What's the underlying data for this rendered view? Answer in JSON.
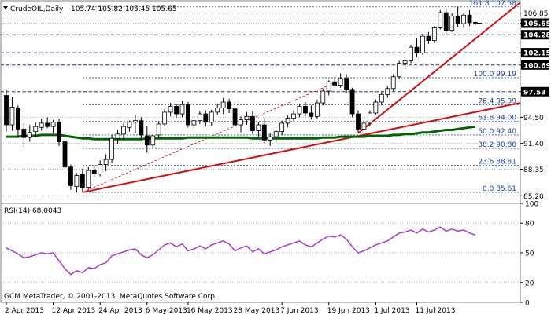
{
  "window": {
    "symbol_title": "CrudeOIL,Daily",
    "ohlc": "105.74 105.82 105.45 105.65",
    "copyright": "GCM MetaTrader, © 2001-2013, MetaQuotes Software Corp."
  },
  "price_axis": {
    "labels": [
      "106.85",
      "105.65",
      "104.28",
      "102.15",
      "100.69",
      "97.53",
      "94.50",
      "91.40",
      "88.35",
      "85.20"
    ],
    "highlighted": [
      "105.65",
      "104.28",
      "102.15",
      "100.69",
      "97.53"
    ]
  },
  "fib_levels": [
    {
      "label": "161.8 107.58",
      "value": 107.58
    },
    {
      "label": "100.0 99.19",
      "value": 99.19
    },
    {
      "label": "76.4 95.99",
      "value": 95.99
    },
    {
      "label": "61.8 94.00",
      "value": 94.0
    },
    {
      "label": "50.0 92.40",
      "value": 92.4
    },
    {
      "label": "38.2 90.80",
      "value": 90.8
    },
    {
      "label": "23.6 88.81",
      "value": 88.81
    },
    {
      "label": "0.0 85.61",
      "value": 85.61
    }
  ],
  "hlines": [
    104.28,
    102.15,
    100.69,
    97.53
  ],
  "rsi": {
    "title": "RSI(14) 68.0043",
    "axis_labels": [
      "100",
      "80",
      "50",
      "20",
      "0"
    ],
    "levels": [
      80,
      50,
      20
    ]
  },
  "time_axis": {
    "labels": [
      "2 Apr 2013",
      "12 Apr 2013",
      "24 Apr 2013",
      "6 May 2013",
      "16 May 2013",
      "28 May 2013",
      "7 Jun 2013",
      "19 Jun 2013",
      "1 Jul 2013",
      "11 Jul 2013"
    ]
  },
  "colors": {
    "up_candle": "#ffffff",
    "down_candle": "#000000",
    "ma": "#006400",
    "trendline": "#e00000",
    "rsi": "#b044c8",
    "highlight_box": "#000000"
  },
  "chart_data": {
    "type": "candlestick",
    "ohlc": [
      [
        97.1,
        97.8,
        92.8,
        93.6
      ],
      [
        93.6,
        96.9,
        92.9,
        95.7
      ],
      [
        95.6,
        95.9,
        92.2,
        93.1
      ],
      [
        93.1,
        93.8,
        91.0,
        92.1
      ],
      [
        92.1,
        93.6,
        91.6,
        92.7
      ],
      [
        92.8,
        93.9,
        92.2,
        93.4
      ],
      [
        93.3,
        94.3,
        92.9,
        93.8
      ],
      [
        93.8,
        94.5,
        93.2,
        93.4
      ],
      [
        93.4,
        94.2,
        92.6,
        93.9
      ],
      [
        93.9,
        94.3,
        91.1,
        91.6
      ],
      [
        91.6,
        91.8,
        88.2,
        88.6
      ],
      [
        88.6,
        88.9,
        85.9,
        86.4
      ],
      [
        86.3,
        87.9,
        85.6,
        87.6
      ],
      [
        87.8,
        88.4,
        85.6,
        86.1
      ],
      [
        86.2,
        88.6,
        85.9,
        88.2
      ],
      [
        88.2,
        88.7,
        87.4,
        87.8
      ],
      [
        87.8,
        89.4,
        87.5,
        88.9
      ],
      [
        88.9,
        90.1,
        88.1,
        89.5
      ],
      [
        89.5,
        92.4,
        89.1,
        92.0
      ],
      [
        92.0,
        93.0,
        91.3,
        92.5
      ],
      [
        92.5,
        93.8,
        91.9,
        93.4
      ],
      [
        93.3,
        94.1,
        92.8,
        93.9
      ],
      [
        93.9,
        94.8,
        92.6,
        94.1
      ],
      [
        94.1,
        94.5,
        91.8,
        92.4
      ],
      [
        92.3,
        93.5,
        90.3,
        91.2
      ],
      [
        91.2,
        92.4,
        90.9,
        92.3
      ],
      [
        92.4,
        94.0,
        92.0,
        93.7
      ],
      [
        93.7,
        95.5,
        93.4,
        95.1
      ],
      [
        95.1,
        96.2,
        94.6,
        95.8
      ],
      [
        95.8,
        96.1,
        94.4,
        94.9
      ],
      [
        94.9,
        96.5,
        94.5,
        96.0
      ],
      [
        96.0,
        96.3,
        93.3,
        93.6
      ],
      [
        93.6,
        94.4,
        92.9,
        94.1
      ],
      [
        94.1,
        95.2,
        93.7,
        94.9
      ],
      [
        94.9,
        95.3,
        93.4,
        93.9
      ],
      [
        93.9,
        95.4,
        93.5,
        95.1
      ],
      [
        95.1,
        96.1,
        94.8,
        95.6
      ],
      [
        95.6,
        96.8,
        94.9,
        96.3
      ],
      [
        96.3,
        96.7,
        95.0,
        95.5
      ],
      [
        95.5,
        95.8,
        93.2,
        93.6
      ],
      [
        93.6,
        94.6,
        92.7,
        94.2
      ],
      [
        94.2,
        95.1,
        93.6,
        94.6
      ],
      [
        94.6,
        95.2,
        92.5,
        92.9
      ],
      [
        92.9,
        93.9,
        92.2,
        93.6
      ],
      [
        93.6,
        94.4,
        91.3,
        91.8
      ],
      [
        91.8,
        92.6,
        91.1,
        92.2
      ],
      [
        92.2,
        93.1,
        91.5,
        92.8
      ],
      [
        92.8,
        94.1,
        92.4,
        93.8
      ],
      [
        93.8,
        94.7,
        93.3,
        94.4
      ],
      [
        94.4,
        95.3,
        94.0,
        94.9
      ],
      [
        94.9,
        96.1,
        94.5,
        95.8
      ],
      [
        95.8,
        96.3,
        94.6,
        95.0
      ],
      [
        95.0,
        95.9,
        94.2,
        94.6
      ],
      [
        94.6,
        96.6,
        94.3,
        96.2
      ],
      [
        96.2,
        97.9,
        95.9,
        97.6
      ],
      [
        97.6,
        98.9,
        97.1,
        98.7
      ],
      [
        98.7,
        99.3,
        98.1,
        98.3
      ],
      [
        98.3,
        99.7,
        98.0,
        99.1
      ],
      [
        99.1,
        99.6,
        97.4,
        97.8
      ],
      [
        97.8,
        98.0,
        94.5,
        94.9
      ],
      [
        94.9,
        95.3,
        92.7,
        93.1
      ],
      [
        93.1,
        94.2,
        92.5,
        93.8
      ],
      [
        93.8,
        95.3,
        93.4,
        95.0
      ],
      [
        95.0,
        96.6,
        94.8,
        96.3
      ],
      [
        96.3,
        97.5,
        95.9,
        97.2
      ],
      [
        97.2,
        98.2,
        96.8,
        97.9
      ],
      [
        97.9,
        99.6,
        97.6,
        99.3
      ],
      [
        99.3,
        101.2,
        99.0,
        100.9
      ],
      [
        100.9,
        101.6,
        100.2,
        101.2
      ],
      [
        101.2,
        103.1,
        100.9,
        102.8
      ],
      [
        102.8,
        103.9,
        101.6,
        102.1
      ],
      [
        102.1,
        104.4,
        101.9,
        104.1
      ],
      [
        104.1,
        104.6,
        103.2,
        103.6
      ],
      [
        103.6,
        105.3,
        103.3,
        105.1
      ],
      [
        105.1,
        107.2,
        104.9,
        106.9
      ],
      [
        106.9,
        107.4,
        104.4,
        104.8
      ],
      [
        104.8,
        106.8,
        104.6,
        106.5
      ],
      [
        106.5,
        107.6,
        105.2,
        105.6
      ],
      [
        105.6,
        106.9,
        105.1,
        106.6
      ],
      [
        106.6,
        107.2,
        105.3,
        105.7
      ],
      [
        105.74,
        105.82,
        105.45,
        105.65
      ]
    ],
    "ma": [
      92.2,
      92.2,
      92.2,
      92.3,
      92.3,
      92.3,
      92.4,
      92.4,
      92.4,
      92.4,
      92.3,
      92.2,
      92.1,
      92.0,
      92.0,
      91.9,
      91.9,
      91.9,
      91.9,
      91.9,
      91.9,
      91.9,
      91.9,
      91.9,
      92.0,
      92.0,
      92.0,
      92.0,
      92.0,
      92.0,
      92.0,
      92.1,
      92.1,
      92.1,
      92.1,
      92.1,
      92.1,
      92.1,
      92.1,
      92.1,
      92.1,
      92.1,
      92.0,
      92.0,
      92.0,
      92.0,
      92.0,
      92.0,
      92.0,
      92.0,
      92.0,
      92.0,
      92.0,
      92.0,
      92.1,
      92.1,
      92.1,
      92.2,
      92.2,
      92.2,
      92.2,
      92.2,
      92.3,
      92.3,
      92.3,
      92.3,
      92.4,
      92.4,
      92.5,
      92.5,
      92.6,
      92.7,
      92.7,
      92.8,
      92.9,
      93.0,
      93.0,
      93.1,
      93.2,
      93.3,
      93.4
    ],
    "rsi_values": [
      55,
      52,
      49,
      45,
      46,
      48,
      50,
      49,
      50,
      42,
      34,
      28,
      32,
      30,
      35,
      34,
      38,
      40,
      47,
      49,
      51,
      53,
      54,
      48,
      45,
      48,
      53,
      58,
      60,
      56,
      59,
      52,
      54,
      57,
      54,
      58,
      60,
      62,
      59,
      52,
      55,
      57,
      51,
      54,
      49,
      51,
      53,
      56,
      58,
      60,
      62,
      58,
      56,
      60,
      64,
      67,
      66,
      68,
      64,
      56,
      50,
      52,
      55,
      58,
      60,
      62,
      66,
      70,
      71,
      73,
      70,
      74,
      71,
      73,
      76,
      72,
      74,
      72,
      73,
      70,
      68
    ],
    "price_range": [
      84.3,
      108.3
    ],
    "rsi_range": [
      0,
      100
    ],
    "xlabel": "",
    "ylabel": ""
  }
}
